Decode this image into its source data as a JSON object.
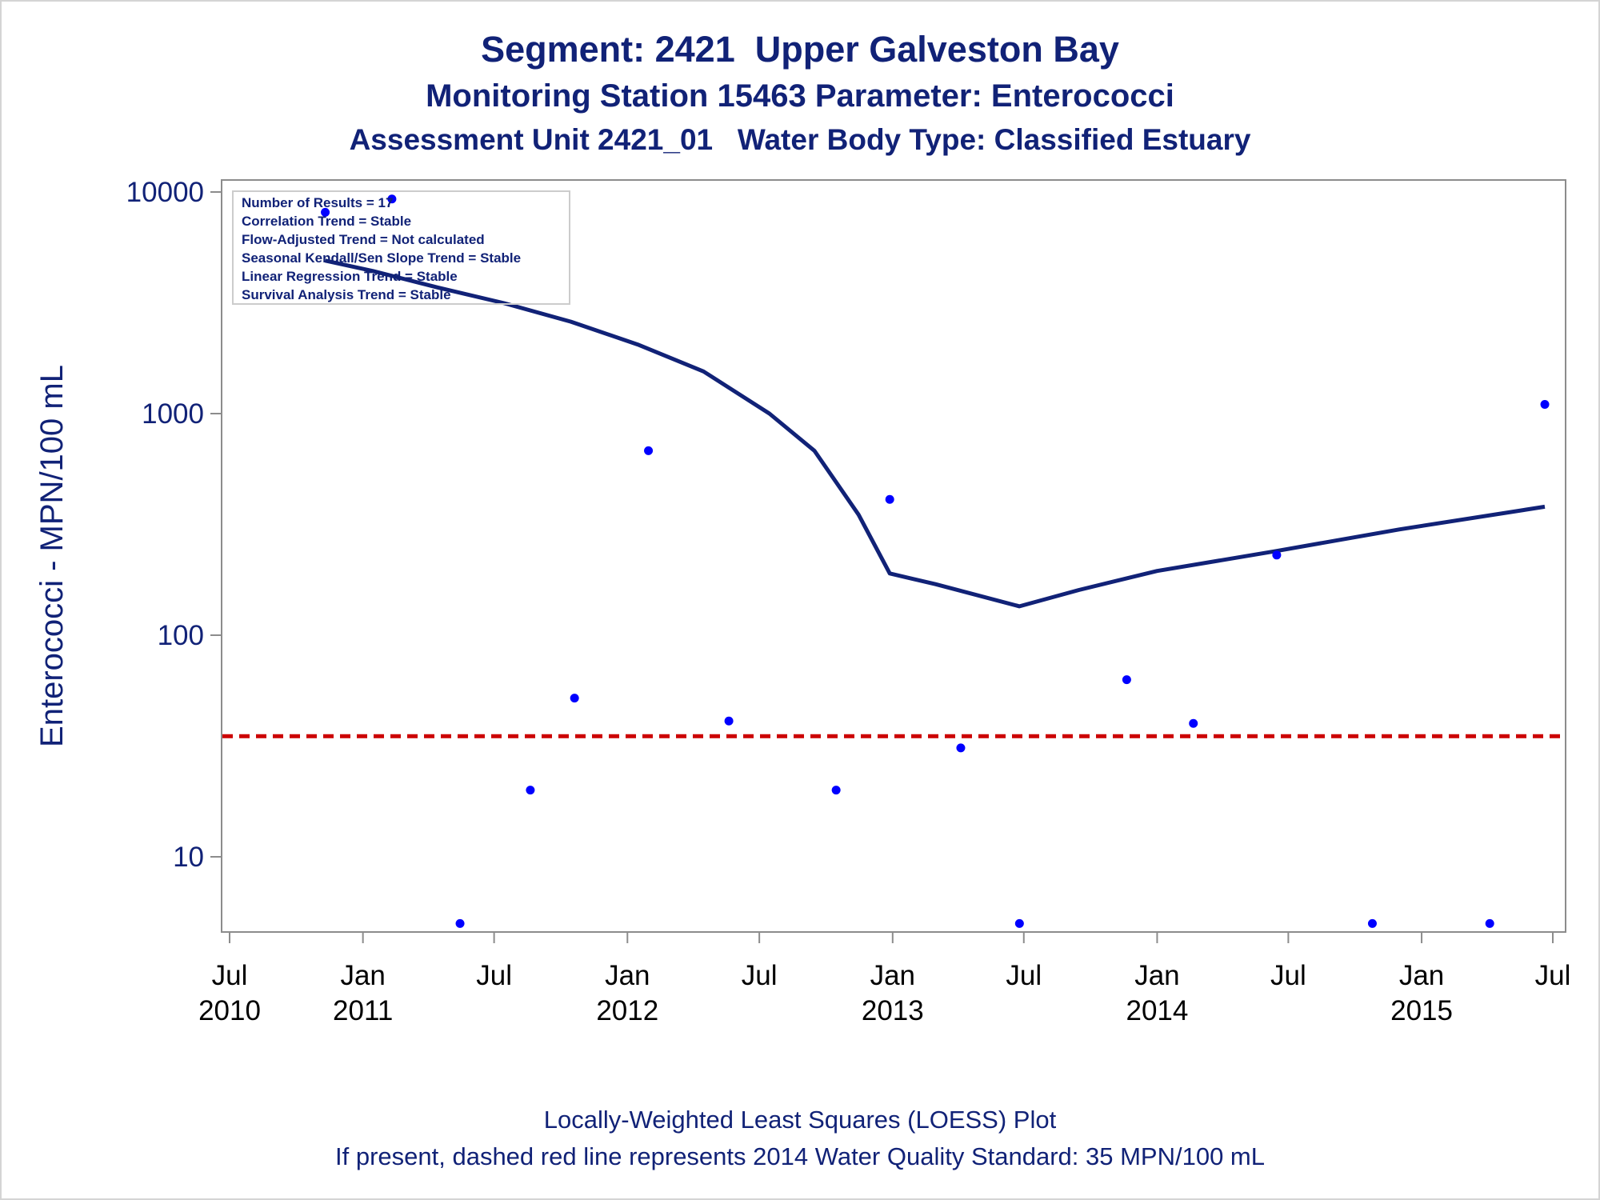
{
  "chart_data": {
    "type": "scatter",
    "title": "Segment: 2421  Upper Galveston Bay",
    "subtitle_lines": [
      "Monitoring Station 15463 Parameter: Enterococci",
      "Assessment Unit 2421_01   Water Body Type: Classified Estuary"
    ],
    "ylabel": "Enterococci - MPN/100 mL",
    "xlabel": "",
    "y_scale": "log",
    "ylim": [
      4.5,
      10000
    ],
    "xlim": [
      "2010-07-01",
      "2015-07-01"
    ],
    "y_ticks": [
      {
        "value": 10,
        "label": "10"
      },
      {
        "value": 100,
        "label": "100"
      },
      {
        "value": 1000,
        "label": "1000"
      },
      {
        "value": 10000,
        "label": "10000"
      }
    ],
    "x_ticks": [
      {
        "date": "2010-07-01",
        "month": "Jul",
        "year": "2010"
      },
      {
        "date": "2011-01-01",
        "month": "Jan",
        "year": "2011"
      },
      {
        "date": "2011-07-01",
        "month": "Jul",
        "year": ""
      },
      {
        "date": "2012-01-01",
        "month": "Jan",
        "year": "2012"
      },
      {
        "date": "2012-07-01",
        "month": "Jul",
        "year": ""
      },
      {
        "date": "2013-01-01",
        "month": "Jan",
        "year": "2013"
      },
      {
        "date": "2013-07-01",
        "month": "Jul",
        "year": ""
      },
      {
        "date": "2014-01-01",
        "month": "Jan",
        "year": "2014"
      },
      {
        "date": "2014-07-01",
        "month": "Jul",
        "year": ""
      },
      {
        "date": "2015-01-01",
        "month": "Jan",
        "year": "2015"
      },
      {
        "date": "2015-07-01",
        "month": "Jul",
        "year": ""
      }
    ],
    "series": [
      {
        "kind": "points",
        "color": "#0000ff",
        "points": [
          {
            "x": "2010-11-10",
            "y": 8100
          },
          {
            "x": "2011-02-10",
            "y": 9300
          },
          {
            "x": "2011-05-15",
            "y": 5
          },
          {
            "x": "2011-08-20",
            "y": 20
          },
          {
            "x": "2011-10-20",
            "y": 52
          },
          {
            "x": "2012-01-30",
            "y": 680
          },
          {
            "x": "2012-05-20",
            "y": 41
          },
          {
            "x": "2012-10-15",
            "y": 20
          },
          {
            "x": "2012-12-28",
            "y": 410
          },
          {
            "x": "2013-04-05",
            "y": 31
          },
          {
            "x": "2013-06-25",
            "y": 5
          },
          {
            "x": "2013-11-20",
            "y": 63
          },
          {
            "x": "2014-02-20",
            "y": 40
          },
          {
            "x": "2014-06-15",
            "y": 230
          },
          {
            "x": "2014-10-25",
            "y": 5
          },
          {
            "x": "2015-04-05",
            "y": 5
          },
          {
            "x": "2015-06-20",
            "y": 1100
          }
        ]
      },
      {
        "kind": "loess",
        "color": "#112277",
        "points": [
          {
            "x": "2010-11-10",
            "y": 4900
          },
          {
            "x": "2011-01-15",
            "y": 4400
          },
          {
            "x": "2011-04-15",
            "y": 3700
          },
          {
            "x": "2011-07-15",
            "y": 3150
          },
          {
            "x": "2011-10-15",
            "y": 2600
          },
          {
            "x": "2012-01-15",
            "y": 2050
          },
          {
            "x": "2012-04-15",
            "y": 1550
          },
          {
            "x": "2012-07-15",
            "y": 1000
          },
          {
            "x": "2012-09-15",
            "y": 680
          },
          {
            "x": "2012-11-15",
            "y": 350
          },
          {
            "x": "2012-12-28",
            "y": 190
          },
          {
            "x": "2013-03-01",
            "y": 170
          },
          {
            "x": "2013-06-25",
            "y": 135
          },
          {
            "x": "2013-09-15",
            "y": 160
          },
          {
            "x": "2014-01-01",
            "y": 195
          },
          {
            "x": "2014-06-15",
            "y": 240
          },
          {
            "x": "2014-12-01",
            "y": 300
          },
          {
            "x": "2015-06-20",
            "y": 380
          }
        ]
      }
    ],
    "reference_line": {
      "y": 35,
      "color": "#cc0000",
      "style": "dashed"
    },
    "legend": {
      "placement": "top-left",
      "lines": [
        "Number of Results = 17",
        "Correlation Trend = Stable",
        "Flow-Adjusted Trend = Not calculated",
        "Seasonal Kendall/Sen Slope Trend = Stable",
        "Linear Regression Trend = Stable",
        "Survival Analysis Trend = Stable"
      ]
    },
    "footnotes": [
      "Locally-Weighted Least Squares (LOESS) Plot",
      "If present, dashed red line represents 2014 Water Quality Standard: 35 MPN/100 mL"
    ],
    "grid": false
  }
}
